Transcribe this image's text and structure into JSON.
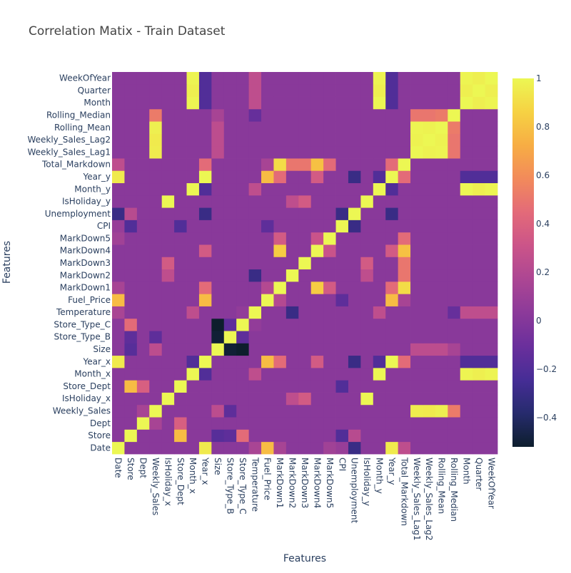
{
  "chart_data": {
    "type": "heatmap",
    "title": "Correlation Matix - Train Dataset",
    "xlabel": "Features",
    "ylabel": "Features",
    "x_categories": [
      "Date",
      "Store",
      "Dept",
      "Weekly_Sales",
      "IsHoliday_x",
      "Store_Dept",
      "Month_x",
      "Year_x",
      "Size",
      "Store_Type_B",
      "Store_Type_C",
      "Temperature",
      "Fuel_Price",
      "MarkDown1",
      "MarkDown2",
      "MarkDown3",
      "MarkDown4",
      "MarkDown5",
      "CPI",
      "Unemployment",
      "IsHoliday_y",
      "Month_y",
      "Year_y",
      "Total_Markdown",
      "Weekly_Sales_Lag1",
      "Weekly_Sales_Lag2",
      "Rolling_Mean",
      "Rolling_Median",
      "Month",
      "Quarter",
      "WeekOfYear"
    ],
    "y_categories_bottom_to_top": [
      "Date",
      "Store",
      "Dept",
      "Weekly_Sales",
      "IsHoliday_x",
      "Store_Dept",
      "Month_x",
      "Year_x",
      "Size",
      "Store_Type_B",
      "Store_Type_C",
      "Temperature",
      "Fuel_Price",
      "MarkDown1",
      "MarkDown2",
      "MarkDown3",
      "MarkDown4",
      "MarkDown5",
      "CPI",
      "Unemployment",
      "IsHoliday_y",
      "Month_y",
      "Year_y",
      "Total_Markdown",
      "Weekly_Sales_Lag1",
      "Weekly_Sales_Lag2",
      "Rolling_Mean",
      "Rolling_Median",
      "Month",
      "Quarter",
      "WeekOfYear"
    ],
    "zlim": [
      -0.52,
      1
    ],
    "colorbar_ticks": [
      {
        "value": 1,
        "label": "1"
      },
      {
        "value": 0.8,
        "label": "0.8"
      },
      {
        "value": 0.6,
        "label": "0.6"
      },
      {
        "value": 0.4,
        "label": "0.4"
      },
      {
        "value": 0.2,
        "label": "0.2"
      },
      {
        "value": 0,
        "label": "0"
      },
      {
        "value": -0.2,
        "label": "−0.2"
      },
      {
        "value": -0.4,
        "label": "−0.4"
      }
    ],
    "colorscale": [
      "#0d1e2d",
      "#262b6d",
      "#462d96",
      "#6a2f9c",
      "#8c3a9a",
      "#ac4693",
      "#cb5489",
      "#e36a79",
      "#f28a5b",
      "#f7ad44",
      "#f6d243",
      "#ecf753"
    ],
    "correlation_pairs": [
      [
        "Date",
        "Year_x",
        0.95
      ],
      [
        "Date",
        "Year_y",
        0.95
      ],
      [
        "Date",
        "Fuel_Price",
        0.78
      ],
      [
        "Date",
        "Unemployment",
        -0.3
      ],
      [
        "Date",
        "CPI",
        0.08
      ],
      [
        "Date",
        "Temperature",
        0.16
      ],
      [
        "Date",
        "MarkDown1",
        0.15
      ],
      [
        "Date",
        "MarkDown5",
        0.12
      ],
      [
        "Date",
        "Total_Markdown",
        0.25
      ],
      [
        "Year_x",
        "Year_y",
        1.0
      ],
      [
        "Year_x",
        "Month_x",
        -0.2
      ],
      [
        "Year_x",
        "Fuel_Price",
        0.78
      ],
      [
        "Year_x",
        "Unemployment",
        -0.3
      ],
      [
        "Year_x",
        "Month",
        -0.2
      ],
      [
        "Year_x",
        "Quarter",
        -0.2
      ],
      [
        "Year_x",
        "WeekOfYear",
        -0.2
      ],
      [
        "Year_x",
        "Month_y",
        -0.2
      ],
      [
        "Year_x",
        "MarkDown1",
        0.45
      ],
      [
        "Year_x",
        "MarkDown4",
        0.35
      ],
      [
        "Year_x",
        "Total_Markdown",
        0.45
      ],
      [
        "Year_y",
        "Fuel_Price",
        0.78
      ],
      [
        "Year_y",
        "Unemployment",
        -0.3
      ],
      [
        "Year_y",
        "Month_y",
        -0.2
      ],
      [
        "Year_y",
        "Month",
        -0.2
      ],
      [
        "Year_y",
        "Quarter",
        -0.2
      ],
      [
        "Year_y",
        "WeekOfYear",
        -0.2
      ],
      [
        "Year_y",
        "MarkDown1",
        0.45
      ],
      [
        "Year_y",
        "MarkDown4",
        0.35
      ],
      [
        "Year_y",
        "Total_Markdown",
        0.45
      ],
      [
        "Month_x",
        "Month_y",
        1.0
      ],
      [
        "Month_x",
        "Month",
        0.99
      ],
      [
        "Month_x",
        "Quarter",
        0.97
      ],
      [
        "Month_x",
        "WeekOfYear",
        0.99
      ],
      [
        "Month_y",
        "Month",
        1.0
      ],
      [
        "Month_y",
        "Quarter",
        0.97
      ],
      [
        "Month_y",
        "WeekOfYear",
        0.99
      ],
      [
        "Month",
        "Quarter",
        0.97
      ],
      [
        "Month",
        "WeekOfYear",
        0.99
      ],
      [
        "Quarter",
        "WeekOfYear",
        0.97
      ],
      [
        "Temperature",
        "Month",
        0.25
      ],
      [
        "Temperature",
        "Quarter",
        0.25
      ],
      [
        "Temperature",
        "WeekOfYear",
        0.25
      ],
      [
        "Temperature",
        "Month_x",
        0.25
      ],
      [
        "Temperature",
        "Month_y",
        0.25
      ],
      [
        "Temperature",
        "MarkDown2",
        -0.3
      ],
      [
        "Temperature",
        "Store_Type_C",
        0.06
      ],
      [
        "Temperature",
        "Rolling_Median",
        -0.12
      ],
      [
        "Weekly_Sales",
        "Weekly_Sales_Lag1",
        0.96
      ],
      [
        "Weekly_Sales",
        "Weekly_Sales_Lag2",
        0.95
      ],
      [
        "Weekly_Sales",
        "Rolling_Mean",
        0.97
      ],
      [
        "Weekly_Sales",
        "Rolling_Median",
        0.52
      ],
      [
        "Weekly_Sales",
        "Size",
        0.24
      ],
      [
        "Weekly_Sales",
        "Dept",
        0.15
      ],
      [
        "Weekly_Sales",
        "Store_Type_B",
        -0.15
      ],
      [
        "Weekly_Sales_Lag1",
        "Weekly_Sales_Lag2",
        0.98
      ],
      [
        "Weekly_Sales_Lag1",
        "Rolling_Mean",
        0.99
      ],
      [
        "Weekly_Sales_Lag2",
        "Rolling_Mean",
        0.98
      ],
      [
        "Weekly_Sales_Lag1",
        "Rolling_Median",
        0.5
      ],
      [
        "Weekly_Sales_Lag2",
        "Rolling_Median",
        0.5
      ],
      [
        "Rolling_Mean",
        "Rolling_Median",
        0.52
      ],
      [
        "Weekly_Sales_Lag1",
        "Size",
        0.24
      ],
      [
        "Weekly_Sales_Lag2",
        "Size",
        0.24
      ],
      [
        "Rolling_Mean",
        "Size",
        0.24
      ],
      [
        "Rolling_Median",
        "Size",
        0.15
      ],
      [
        "Store",
        "Store_Dept",
        0.78
      ],
      [
        "Store",
        "Size",
        -0.18
      ],
      [
        "Store",
        "Store_Type_C",
        0.45
      ],
      [
        "Store",
        "Store_Type_B",
        -0.15
      ],
      [
        "Store",
        "CPI",
        -0.2
      ],
      [
        "Store",
        "Unemployment",
        0.22
      ],
      [
        "Dept",
        "Store_Dept",
        0.38
      ],
      [
        "Dept",
        "Weekly_Sales",
        0.15
      ],
      [
        "IsHoliday_x",
        "IsHoliday_y",
        1.0
      ],
      [
        "IsHoliday_x",
        "MarkDown3",
        0.35
      ],
      [
        "IsHoliday_x",
        "MarkDown2",
        0.25
      ],
      [
        "IsHoliday_y",
        "MarkDown3",
        0.35
      ],
      [
        "IsHoliday_y",
        "MarkDown2",
        0.25
      ],
      [
        "Size",
        "Store_Type_B",
        -0.5
      ],
      [
        "Size",
        "Store_Type_C",
        -0.52
      ],
      [
        "Store_Type_B",
        "Store_Type_C",
        -0.15
      ],
      [
        "MarkDown1",
        "MarkDown4",
        0.84
      ],
      [
        "MarkDown1",
        "Total_Markdown",
        0.9
      ],
      [
        "MarkDown4",
        "Total_Markdown",
        0.8
      ],
      [
        "MarkDown1",
        "MarkDown5",
        0.35
      ],
      [
        "MarkDown2",
        "Total_Markdown",
        0.5
      ],
      [
        "MarkDown3",
        "Total_Markdown",
        0.5
      ],
      [
        "MarkDown5",
        "Total_Markdown",
        0.45
      ],
      [
        "MarkDown4",
        "MarkDown5",
        0.3
      ],
      [
        "Fuel_Price",
        "MarkDown1",
        0.2
      ],
      [
        "Fuel_Price",
        "CPI",
        -0.15
      ],
      [
        "Fuel_Price",
        "Total_Markdown",
        0.15
      ],
      [
        "CPI",
        "Unemployment",
        -0.3
      ],
      [
        "CPI",
        "Store_Dept",
        -0.2
      ]
    ]
  }
}
